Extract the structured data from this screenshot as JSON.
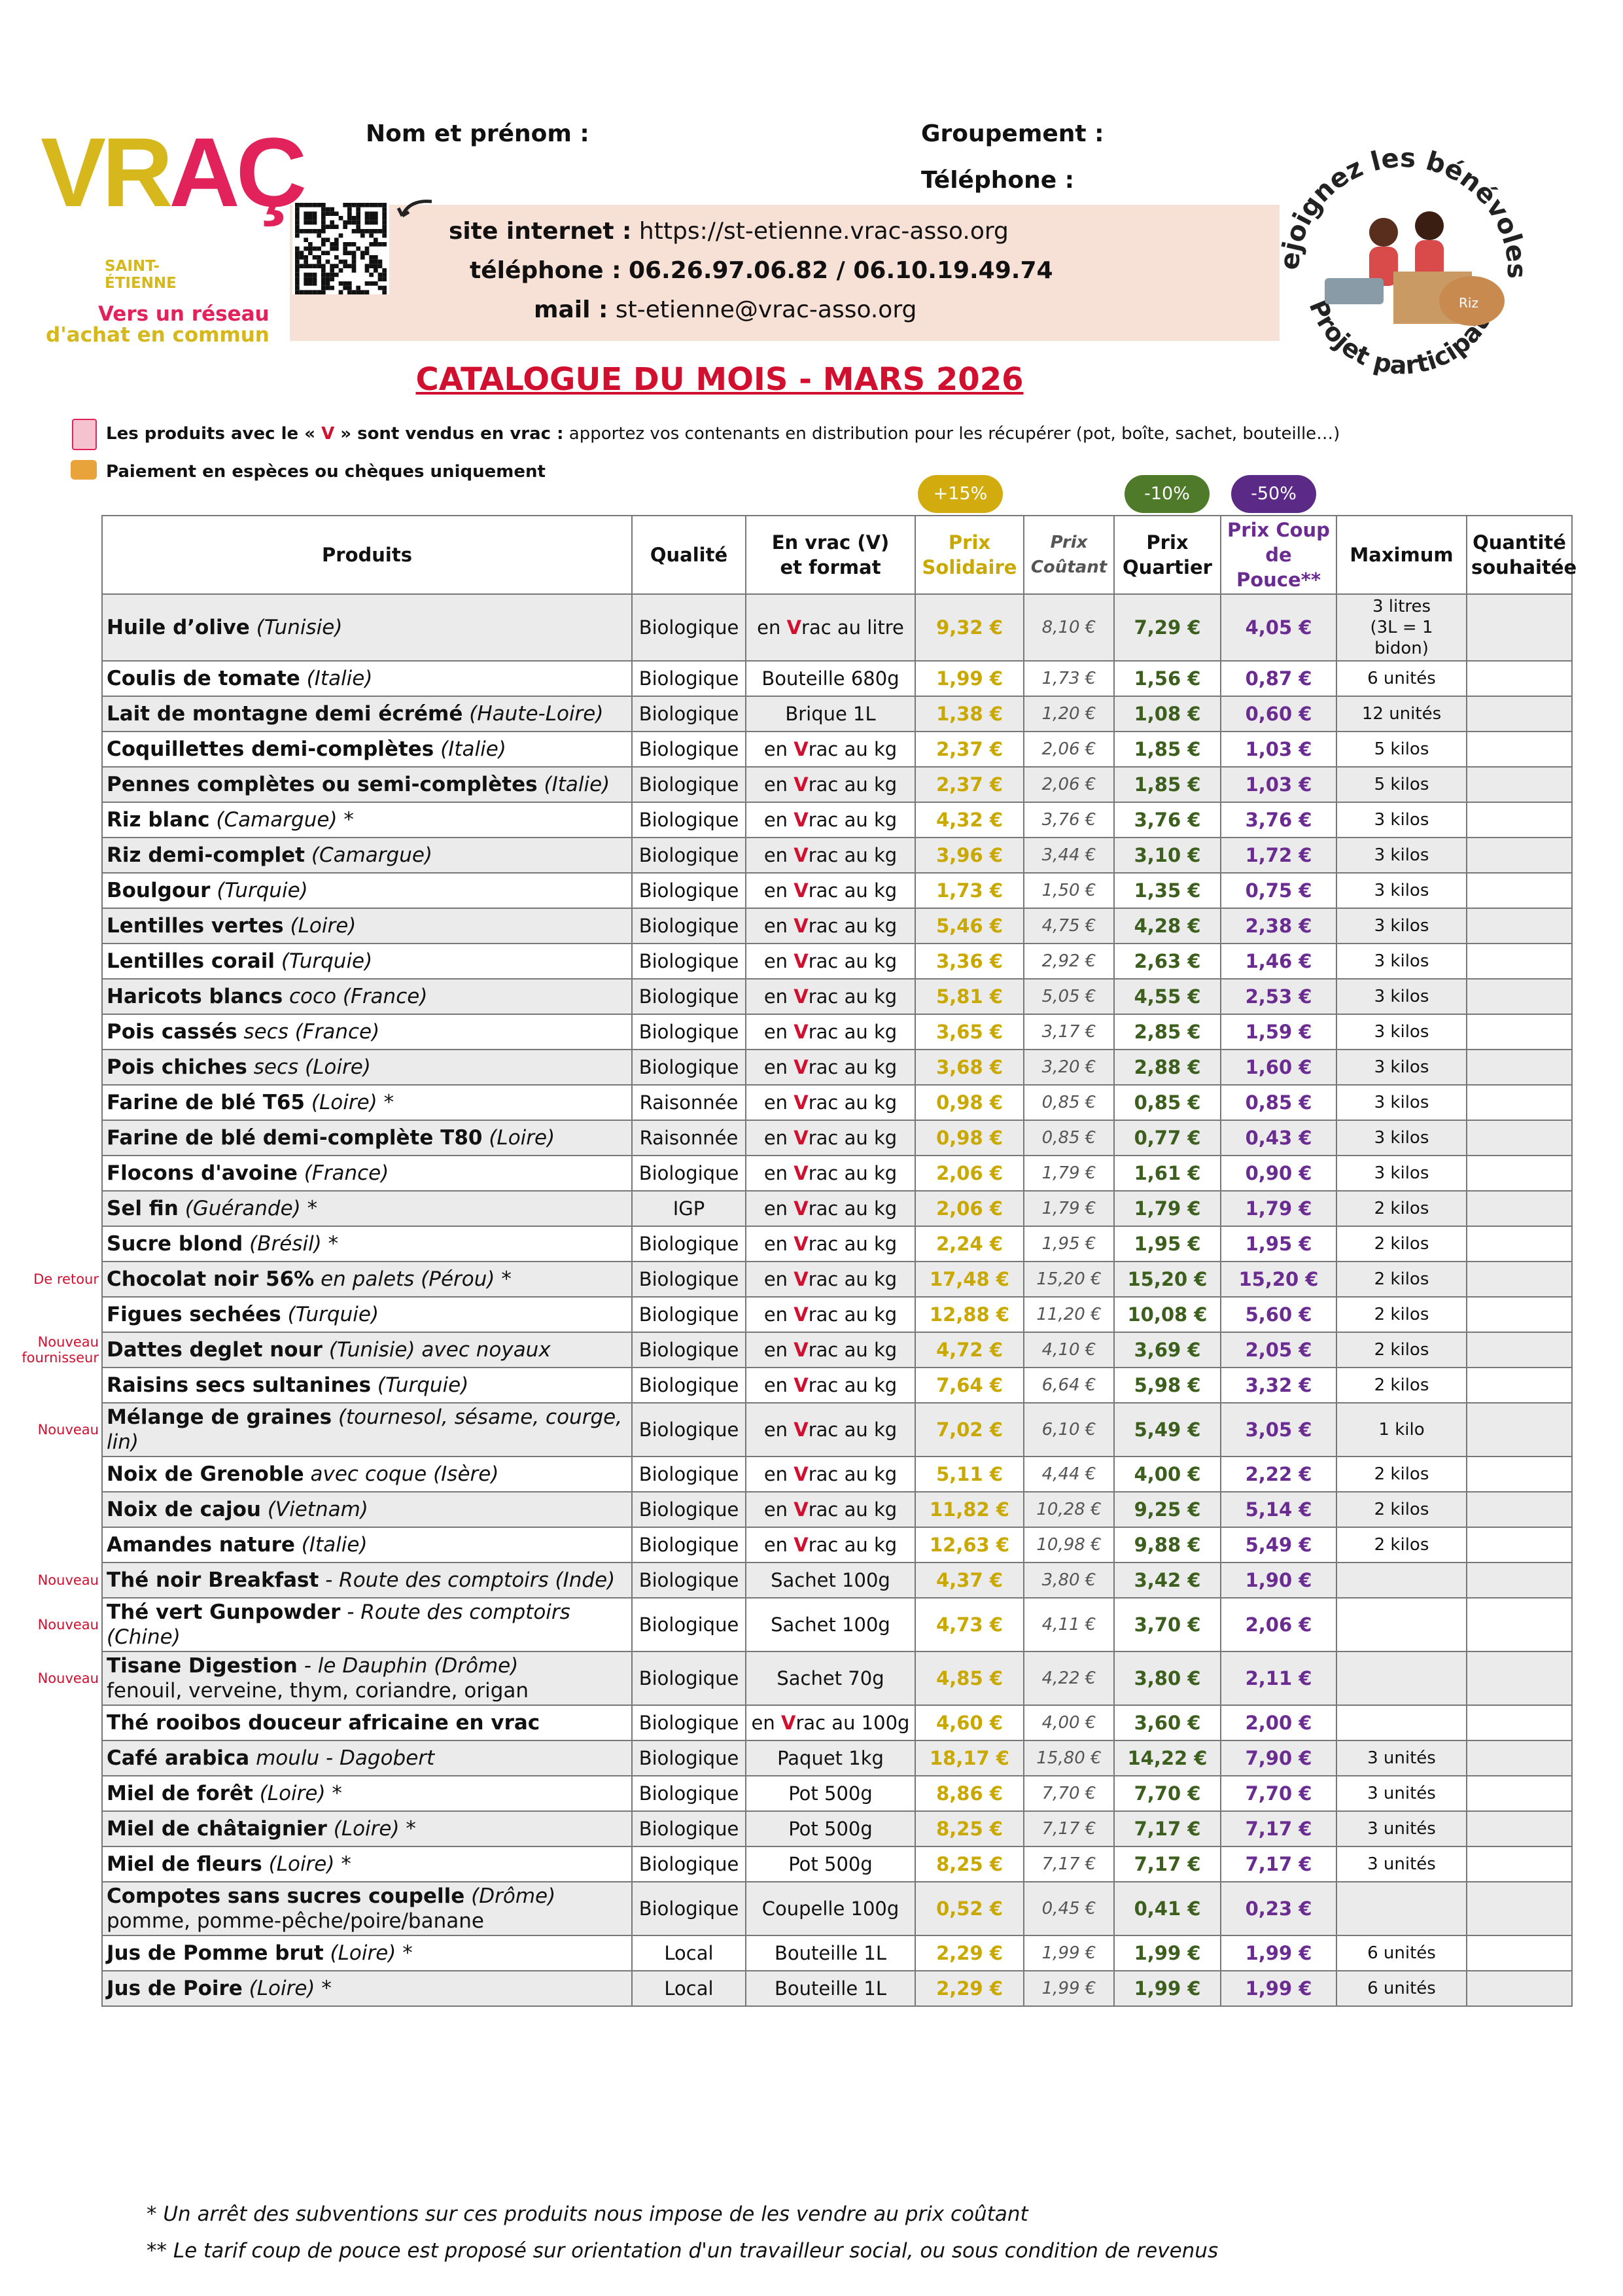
{
  "logo": {
    "part1": "VR",
    "part2": "AÇ",
    "city": "SAINT-\nÉTIENNE",
    "tagline1": "Vers un réseau",
    "tagline2": "d'achat en commun"
  },
  "header": {
    "name_label": "Nom et prénom :",
    "group_label": "Groupement :",
    "phone_label": "Téléphone :",
    "contact": {
      "site_label": "site internet :",
      "site": "https://st-etienne.vrac-asso.org",
      "phone_label": "téléphone :",
      "phone": "06.26.97.06.82 / 06.10.19.49.74",
      "mail_label": "mail :",
      "mail": "st-etienne@vrac-asso.org"
    },
    "badge": {
      "top": "Rejoignez les bénévoles!",
      "bottom": "Projet participatif",
      "sack": "Riz"
    },
    "title": "CATALOGUE DU MOIS - MARS 2026",
    "note1": {
      "a": "Les produits avec le « ",
      "v": "V",
      "b": " » sont vendus en vrac :",
      "c": " apportez vos contenants en distribution pour les récupérer (pot, boîte, sachet, bouteille…)"
    },
    "note2": "Paiement en espèces ou chèques uniquement",
    "pills": [
      "+15%",
      "-10%",
      "-50%"
    ]
  },
  "table": {
    "columns": [
      "Produits",
      "Qualité",
      "En vrac (V)\net format",
      "Prix\nSolidaire",
      "Prix\nCoûtant",
      "Prix\nQuartier",
      "Prix Coup\nde Pouce**",
      "Maximum",
      "Quantité\nsouhaitée"
    ],
    "rows": [
      {
        "name": "Huile d’olive",
        "detail": "(Tunisie)",
        "quality": "Biologique",
        "format": "en Vrac au litre",
        "solidaire": "9,32 €",
        "coutant": "8,10 €",
        "quartier": "7,29 €",
        "pouce": "4,05 €",
        "max": "3 litres\n(3L = 1 bidon)"
      },
      {
        "name": "Coulis de tomate",
        "detail": "(Italie)",
        "quality": "Biologique",
        "format": "Bouteille 680g",
        "solidaire": "1,99 €",
        "coutant": "1,73 €",
        "quartier": "1,56 €",
        "pouce": "0,87 €",
        "max": "6 unités"
      },
      {
        "name": "Lait de montagne demi écrémé",
        "detail": "(Haute-Loire)",
        "quality": "Biologique",
        "format": "Brique 1L",
        "solidaire": "1,38 €",
        "coutant": "1,20 €",
        "quartier": "1,08 €",
        "pouce": "0,60 €",
        "max": "12 unités"
      },
      {
        "name": "Coquillettes demi-complètes",
        "detail": "(Italie)",
        "quality": "Biologique",
        "format": "en Vrac au kg",
        "solidaire": "2,37 €",
        "coutant": "2,06 €",
        "quartier": "1,85 €",
        "pouce": "1,03 €",
        "max": "5 kilos"
      },
      {
        "name": "Pennes complètes ou semi-complètes",
        "detail": "(Italie)",
        "quality": "Biologique",
        "format": "en Vrac au kg",
        "solidaire": "2,37 €",
        "coutant": "2,06 €",
        "quartier": "1,85 €",
        "pouce": "1,03 €",
        "max": "5 kilos"
      },
      {
        "name": "Riz blanc",
        "detail": "(Camargue) *",
        "quality": "Biologique",
        "format": "en Vrac au kg",
        "solidaire": "4,32 €",
        "coutant": "3,76 €",
        "quartier": "3,76 €",
        "pouce": "3,76 €",
        "max": "3 kilos"
      },
      {
        "name": "Riz demi-complet",
        "detail": "(Camargue)",
        "quality": "Biologique",
        "format": "en Vrac au kg",
        "solidaire": "3,96 €",
        "coutant": "3,44 €",
        "quartier": "3,10 €",
        "pouce": "1,72 €",
        "max": "3 kilos"
      },
      {
        "name": "Boulgour",
        "detail": "(Turquie)",
        "quality": "Biologique",
        "format": "en Vrac au kg",
        "solidaire": "1,73 €",
        "coutant": "1,50 €",
        "quartier": "1,35 €",
        "pouce": "0,75 €",
        "max": "3 kilos"
      },
      {
        "name": "Lentilles vertes",
        "detail": "(Loire)",
        "quality": "Biologique",
        "format": "en Vrac au kg",
        "solidaire": "5,46 €",
        "coutant": "4,75 €",
        "quartier": "4,28 €",
        "pouce": "2,38 €",
        "max": "3 kilos"
      },
      {
        "name": "Lentilles corail",
        "detail": "(Turquie)",
        "quality": "Biologique",
        "format": "en Vrac au kg",
        "solidaire": "3,36 €",
        "coutant": "2,92 €",
        "quartier": "2,63 €",
        "pouce": "1,46 €",
        "max": "3 kilos"
      },
      {
        "name": "Haricots blancs",
        "detail": "coco (France)",
        "quality": "Biologique",
        "format": "en Vrac au kg",
        "solidaire": "5,81 €",
        "coutant": "5,05 €",
        "quartier": "4,55 €",
        "pouce": "2,53 €",
        "max": "3 kilos"
      },
      {
        "name": "Pois cassés",
        "detail": "secs (France)",
        "quality": "Biologique",
        "format": "en Vrac au kg",
        "solidaire": "3,65 €",
        "coutant": "3,17 €",
        "quartier": "2,85 €",
        "pouce": "1,59 €",
        "max": "3 kilos"
      },
      {
        "name": "Pois chiches",
        "detail": "secs (Loire)",
        "quality": "Biologique",
        "format": "en Vrac au kg",
        "solidaire": "3,68 €",
        "coutant": "3,20 €",
        "quartier": "2,88 €",
        "pouce": "1,60 €",
        "max": "3 kilos"
      },
      {
        "name": "Farine de blé T65",
        "detail": "(Loire) *",
        "quality": "Raisonnée",
        "format": "en Vrac au kg",
        "solidaire": "0,98 €",
        "coutant": "0,85 €",
        "quartier": "0,85 €",
        "pouce": "0,85 €",
        "max": "3 kilos"
      },
      {
        "name": "Farine de blé demi-complète T80",
        "detail": "(Loire)",
        "quality": "Raisonnée",
        "format": "en Vrac au kg",
        "solidaire": "0,98 €",
        "coutant": "0,85 €",
        "quartier": "0,77 €",
        "pouce": "0,43 €",
        "max": "3 kilos"
      },
      {
        "name": "Flocons d'avoine",
        "detail": "(France)",
        "quality": "Biologique",
        "format": "en Vrac au kg",
        "solidaire": "2,06 €",
        "coutant": "1,79 €",
        "quartier": "1,61 €",
        "pouce": "0,90 €",
        "max": "3 kilos"
      },
      {
        "name": "Sel fin",
        "detail": "(Guérande) *",
        "quality": "IGP",
        "format": "en Vrac au kg",
        "solidaire": "2,06 €",
        "coutant": "1,79 €",
        "quartier": "1,79 €",
        "pouce": "1,79 €",
        "max": "2 kilos"
      },
      {
        "name": "Sucre blond",
        "detail": "(Brésil) *",
        "quality": "Biologique",
        "format": "en Vrac au kg",
        "solidaire": "2,24 €",
        "coutant": "1,95 €",
        "quartier": "1,95 €",
        "pouce": "1,95 €",
        "max": "2 kilos"
      },
      {
        "note": "De retour",
        "name": "Chocolat noir 56%",
        "detail": "en palets (Pérou) *",
        "quality": "Biologique",
        "format": "en Vrac au kg",
        "solidaire": "17,48 €",
        "coutant": "15,20 €",
        "quartier": "15,20 €",
        "pouce": "15,20 €",
        "max": "2 kilos"
      },
      {
        "name": "Figues sechées",
        "detail": "(Turquie)",
        "quality": "Biologique",
        "format": "en Vrac au kg",
        "solidaire": "12,88 €",
        "coutant": "11,20 €",
        "quartier": "10,08 €",
        "pouce": "5,60 €",
        "max": "2 kilos"
      },
      {
        "note": "Nouveau fournisseur",
        "name": "Dattes deglet nour",
        "detail": "(Tunisie) avec noyaux",
        "quality": "Biologique",
        "format": "en Vrac au kg",
        "solidaire": "4,72 €",
        "coutant": "4,10 €",
        "quartier": "3,69 €",
        "pouce": "2,05 €",
        "max": "2 kilos"
      },
      {
        "name": "Raisins secs sultanines",
        "detail": "(Turquie)",
        "quality": "Biologique",
        "format": "en Vrac au kg",
        "solidaire": "7,64 €",
        "coutant": "6,64 €",
        "quartier": "5,98 €",
        "pouce": "3,32 €",
        "max": "2 kilos"
      },
      {
        "note": "Nouveau",
        "name": "Mélange de graines",
        "detail": "(tournesol, sésame, courge, lin)",
        "quality": "Biologique",
        "format": "en Vrac au kg",
        "solidaire": "7,02 €",
        "coutant": "6,10 €",
        "quartier": "5,49 €",
        "pouce": "3,05 €",
        "max": "1 kilo"
      },
      {
        "name": "Noix de Grenoble",
        "detail": "avec coque (Isère)",
        "quality": "Biologique",
        "format": "en Vrac au kg",
        "solidaire": "5,11 €",
        "coutant": "4,44 €",
        "quartier": "4,00 €",
        "pouce": "2,22 €",
        "max": "2 kilos"
      },
      {
        "name": "Noix de cajou",
        "detail": "(Vietnam)",
        "quality": "Biologique",
        "format": "en Vrac au kg",
        "solidaire": "11,82 €",
        "coutant": "10,28 €",
        "quartier": "9,25 €",
        "pouce": "5,14 €",
        "max": "2 kilos"
      },
      {
        "name": "Amandes nature",
        "detail": "(Italie)",
        "quality": "Biologique",
        "format": "en Vrac au kg",
        "solidaire": "12,63 €",
        "coutant": "10,98 €",
        "quartier": "9,88 €",
        "pouce": "5,49 €",
        "max": "2 kilos"
      },
      {
        "note": "Nouveau",
        "name": "Thé noir Breakfast",
        "detail": "- Route des comptoirs (Inde)",
        "quality": "Biologique",
        "format": "Sachet 100g",
        "solidaire": "4,37 €",
        "coutant": "3,80 €",
        "quartier": "3,42 €",
        "pouce": "1,90 €"
      },
      {
        "note": "Nouveau",
        "name": "Thé vert Gunpowder",
        "detail": "- Route des comptoirs (Chine)",
        "quality": "Biologique",
        "format": "Sachet 100g",
        "solidaire": "4,73 €",
        "coutant": "4,11 €",
        "quartier": "3,70 €",
        "pouce": "2,06 €"
      },
      {
        "note": "Nouveau",
        "name": "Tisane Digestion",
        "detail": "- le Dauphin (Drôme)",
        "line2": "fenouil, verveine, thym, coriandre, origan",
        "quality": "Biologique",
        "format": "Sachet 70g",
        "solidaire": "4,85 €",
        "coutant": "4,22 €",
        "quartier": "3,80 €",
        "pouce": "2,11 €"
      },
      {
        "name": "Thé rooibos douceur africaine en vrac",
        "quality": "Biologique",
        "format": "en Vrac au 100g",
        "solidaire": "4,60 €",
        "coutant": "4,00 €",
        "quartier": "3,60 €",
        "pouce": "2,00 €"
      },
      {
        "name": "Café arabica",
        "detail": "moulu - Dagobert",
        "quality": "Biologique",
        "format": "Paquet 1kg",
        "solidaire": "18,17 €",
        "coutant": "15,80 €",
        "quartier": "14,22 €",
        "pouce": "7,90 €",
        "max": "3 unités"
      },
      {
        "name": "Miel de forêt",
        "detail": "(Loire) *",
        "quality": "Biologique",
        "format": "Pot 500g",
        "solidaire": "8,86 €",
        "coutant": "7,70 €",
        "quartier": "7,70 €",
        "pouce": "7,70 €",
        "max": "3 unités"
      },
      {
        "name": "Miel de châtaignier",
        "detail": "(Loire) *",
        "quality": "Biologique",
        "format": "Pot 500g",
        "solidaire": "8,25 €",
        "coutant": "7,17 €",
        "quartier": "7,17 €",
        "pouce": "7,17 €",
        "max": "3 unités"
      },
      {
        "name": "Miel de fleurs",
        "detail": "(Loire) *",
        "quality": "Biologique",
        "format": "Pot 500g",
        "solidaire": "8,25 €",
        "coutant": "7,17 €",
        "quartier": "7,17 €",
        "pouce": "7,17 €",
        "max": "3 unités"
      },
      {
        "name": "Compotes sans sucres coupelle",
        "detail": "(Drôme)",
        "line2": "pomme, pomme-pêche/poire/banane",
        "quality": "Biologique",
        "format": "Coupelle 100g",
        "solidaire": "0,52 €",
        "coutant": "0,45 €",
        "quartier": "0,41 €",
        "pouce": "0,23 €"
      },
      {
        "name": "Jus de Pomme brut",
        "detail": "(Loire) *",
        "quality": "Local",
        "format": "Bouteille 1L",
        "solidaire": "2,29 €",
        "coutant": "1,99 €",
        "quartier": "1,99 €",
        "pouce": "1,99 €",
        "max": "6 unités"
      },
      {
        "name": "Jus de Poire",
        "detail": "(Loire) *",
        "quality": "Local",
        "format": "Bouteille 1L",
        "solidaire": "2,29 €",
        "coutant": "1,99 €",
        "quartier": "1,99 €",
        "pouce": "1,99 €",
        "max": "6 unités"
      }
    ]
  },
  "footnotes": [
    "* Un arrêt des subventions sur ces produits nous impose de les vendre au prix coûtant",
    "** Le tarif coup de pouce est proposé sur orientation d'un travailleur social, ou sous condition de revenus"
  ]
}
